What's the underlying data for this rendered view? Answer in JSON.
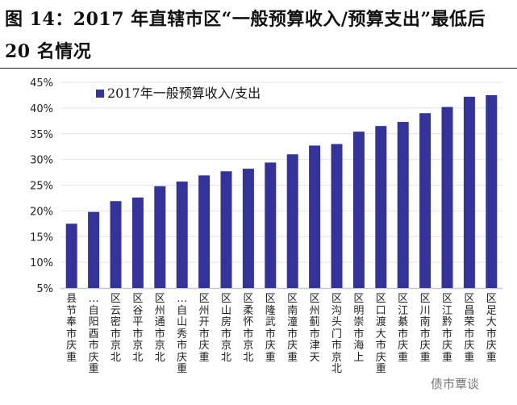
{
  "title": "图 14：2017 年直辖市区“一般预算收入/预算支出”最低后 20 名情况",
  "watermark": "债市覃谈",
  "chart_data": {
    "type": "bar",
    "title": "",
    "xlabel": "",
    "ylabel": "",
    "ylim": [
      5,
      45
    ],
    "yticks": [
      "5%",
      "10%",
      "15%",
      "20%",
      "25%",
      "30%",
      "35%",
      "40%",
      "45%"
    ],
    "grid": true,
    "legend_position": "top-left",
    "bar_color": "#333399",
    "categories": [
      "重庆市奉节县",
      "重庆市酉阳自…",
      "北京市密云区",
      "北京市平谷区",
      "北京市通州区",
      "重庆市秀山自…",
      "重庆市开州区",
      "北京市房山区",
      "北京市怀柔区",
      "重庆市武隆区",
      "重庆市潼南区",
      "天津市蓟州区",
      "北京市门头沟区",
      "上海市崇明区",
      "重庆市大渡口区",
      "重庆市綦江区",
      "重庆市南川区",
      "重庆市黔江区",
      "重庆市荣昌区",
      "重庆市大足区"
    ],
    "series": [
      {
        "name": "2017年一般预算收入/支出",
        "values": [
          17.5,
          19.8,
          21.9,
          22.6,
          24.8,
          25.7,
          26.9,
          27.7,
          28.2,
          29.4,
          31.0,
          32.7,
          33.0,
          35.4,
          36.5,
          37.3,
          39.0,
          40.2,
          42.2,
          42.5
        ]
      }
    ]
  }
}
